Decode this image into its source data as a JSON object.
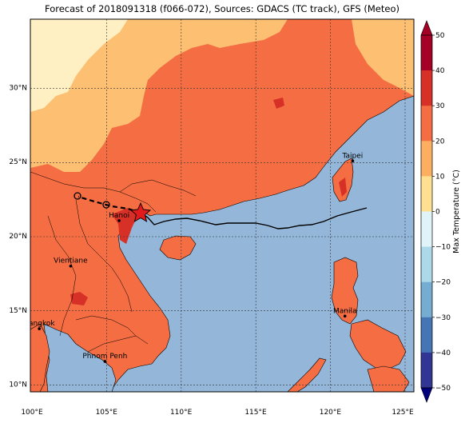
{
  "title": "Forecast of 2018091318 (f066-072), Sources: GDACS (TC track), GFS (Meteo)",
  "colors": {
    "sea": "#93b6d9",
    "t_10_20": "#fdbf72",
    "t_20_30": "#f46d43",
    "t_30_40": "#d73027",
    "t_0_10": "#fff0c4",
    "track": "#000000"
  },
  "lat_ticks": [
    {
      "label": "30°N",
      "lat": 30
    },
    {
      "label": "25°N",
      "lat": 25
    },
    {
      "label": "20°N",
      "lat": 20
    },
    {
      "label": "15°N",
      "lat": 15
    },
    {
      "label": "10°N",
      "lat": 10
    }
  ],
  "lon_ticks": [
    {
      "label": "100°E",
      "lon": 100
    },
    {
      "label": "105°E",
      "lon": 105
    },
    {
      "label": "110°E",
      "lon": 110
    },
    {
      "label": "115°E",
      "lon": 115
    },
    {
      "label": "120°E",
      "lon": 120
    },
    {
      "label": "125°E",
      "lon": 125
    }
  ],
  "cities": [
    {
      "name": "Taipei",
      "lon": 121.5,
      "lat": 25.05
    },
    {
      "name": "Hanoi",
      "lon": 105.85,
      "lat": 21.03
    },
    {
      "name": "Vientiane",
      "lon": 102.6,
      "lat": 17.97
    },
    {
      "name": "Manila",
      "lon": 120.98,
      "lat": 14.6
    },
    {
      "name": "Bangkok",
      "lon": 100.5,
      "lat": 13.75
    },
    {
      "name": "Phnom Penh",
      "lon": 104.9,
      "lat": 11.55
    }
  ],
  "colorbar": {
    "label": "Max Temperature (°C)",
    "ticks": [
      "50",
      "40",
      "30",
      "20",
      "10",
      "0",
      "−10",
      "−20",
      "−30",
      "−40",
      "−50"
    ],
    "bands": [
      "#a50026",
      "#d73027",
      "#f46d43",
      "#fdae61",
      "#fee090",
      "#e0f3f8",
      "#abd9e9",
      "#74add1",
      "#4575b4",
      "#313695"
    ]
  }
}
